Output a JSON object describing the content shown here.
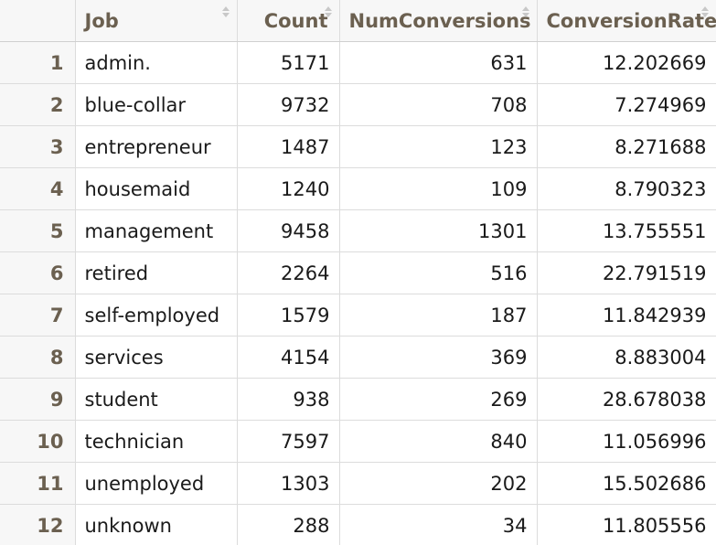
{
  "table": {
    "columns": [
      {
        "label": "",
        "sortable": false
      },
      {
        "label": "Job",
        "sortable": true
      },
      {
        "label": "Count",
        "sortable": true
      },
      {
        "label": "NumConversions",
        "sortable": true
      },
      {
        "label": "ConversionRate",
        "sortable": true
      }
    ],
    "rows": [
      {
        "index": "1",
        "job": "admin.",
        "count": "5171",
        "num_conversions": "631",
        "conversion_rate": "12.202669"
      },
      {
        "index": "2",
        "job": "blue-collar",
        "count": "9732",
        "num_conversions": "708",
        "conversion_rate": "7.274969"
      },
      {
        "index": "3",
        "job": "entrepreneur",
        "count": "1487",
        "num_conversions": "123",
        "conversion_rate": "8.271688"
      },
      {
        "index": "4",
        "job": "housemaid",
        "count": "1240",
        "num_conversions": "109",
        "conversion_rate": "8.790323"
      },
      {
        "index": "5",
        "job": "management",
        "count": "9458",
        "num_conversions": "1301",
        "conversion_rate": "13.755551"
      },
      {
        "index": "6",
        "job": "retired",
        "count": "2264",
        "num_conversions": "516",
        "conversion_rate": "22.791519"
      },
      {
        "index": "7",
        "job": "self-employed",
        "count": "1579",
        "num_conversions": "187",
        "conversion_rate": "11.842939"
      },
      {
        "index": "8",
        "job": "services",
        "count": "4154",
        "num_conversions": "369",
        "conversion_rate": "8.883004"
      },
      {
        "index": "9",
        "job": "student",
        "count": "938",
        "num_conversions": "269",
        "conversion_rate": "28.678038"
      },
      {
        "index": "10",
        "job": "technician",
        "count": "7597",
        "num_conversions": "840",
        "conversion_rate": "11.056996"
      },
      {
        "index": "11",
        "job": "unemployed",
        "count": "1303",
        "num_conversions": "202",
        "conversion_rate": "15.502686"
      },
      {
        "index": "12",
        "job": "unknown",
        "count": "288",
        "num_conversions": "34",
        "conversion_rate": "11.805556"
      }
    ]
  }
}
